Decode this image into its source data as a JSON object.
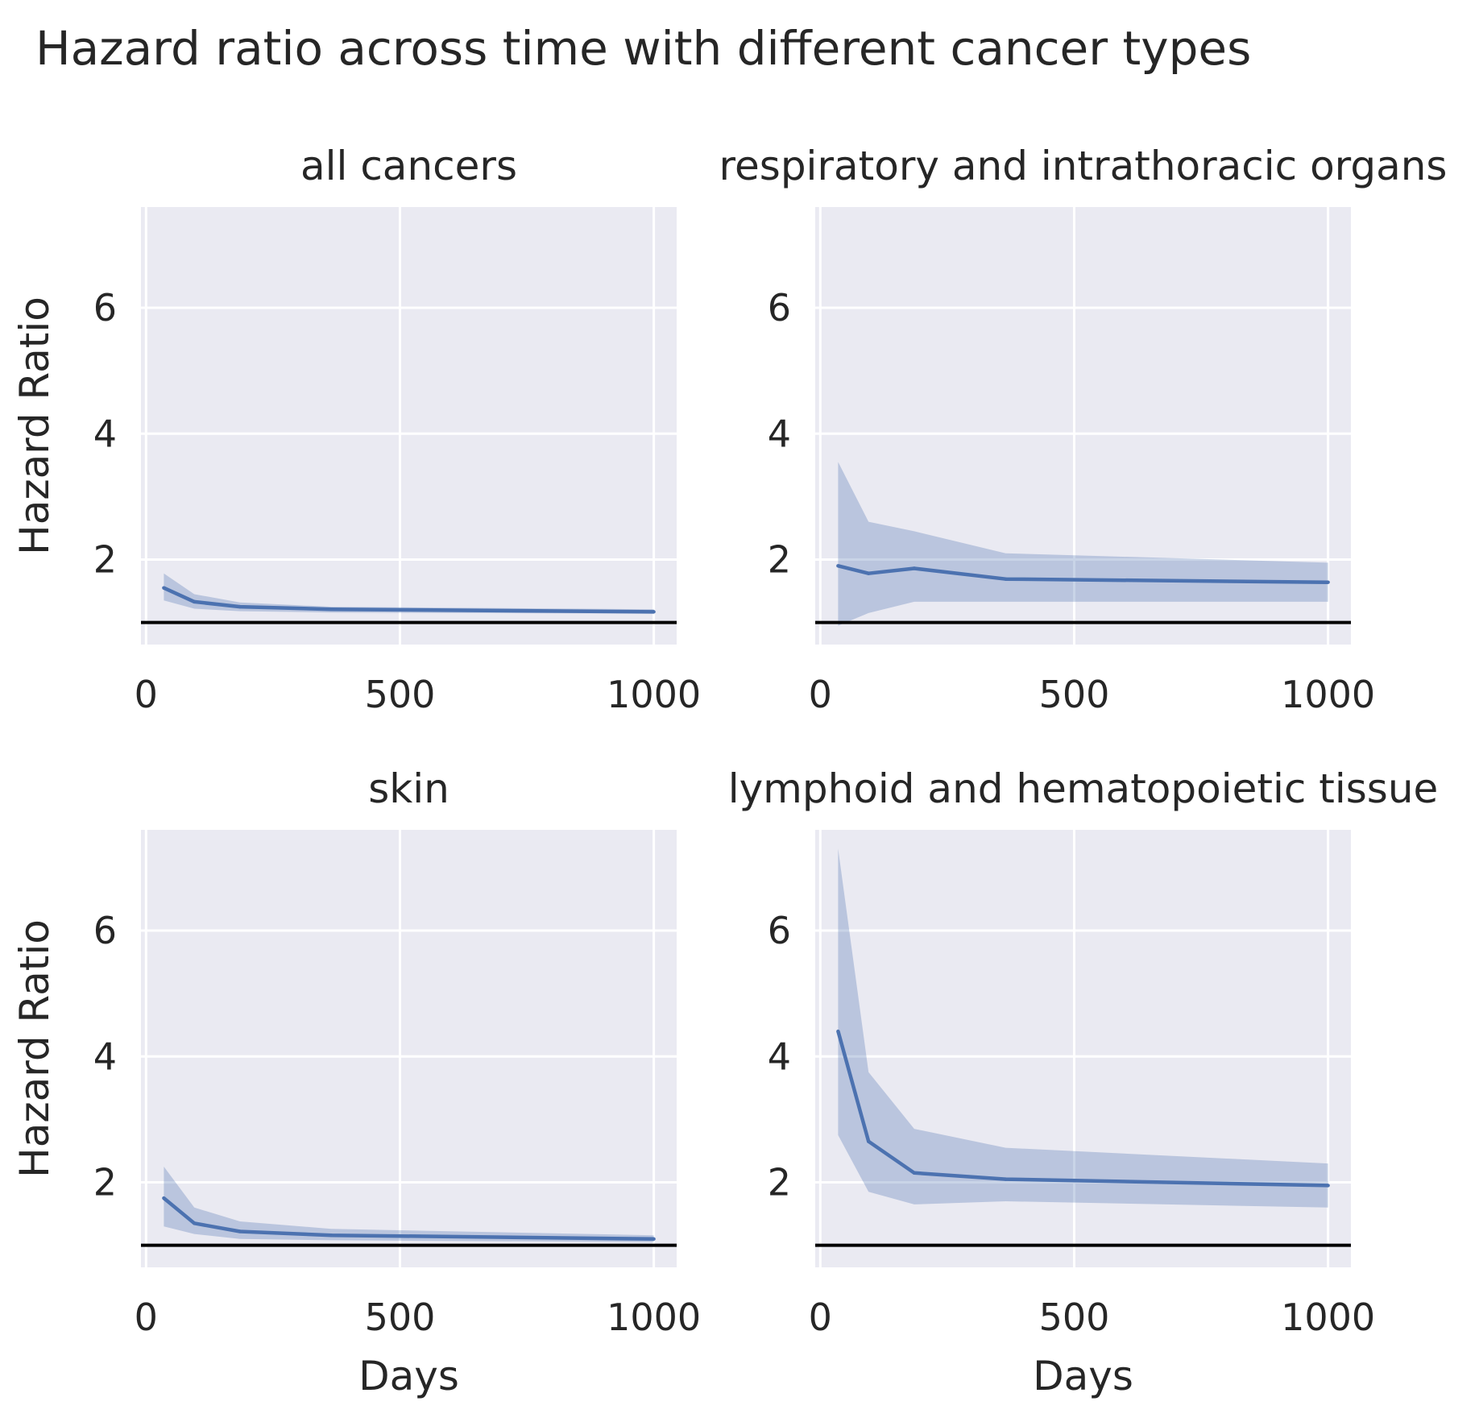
{
  "figure": {
    "title": "Hazard ratio across time with different cancer types"
  },
  "chart_data": [
    {
      "type": "line",
      "title": "all cancers",
      "xlabel": "",
      "ylabel": "Hazard Ratio",
      "xlim": [
        -10,
        1045
      ],
      "ylim": [
        0.65,
        7.6
      ],
      "xticks": [
        0,
        500,
        1000
      ],
      "yticks": [
        2,
        4,
        6
      ],
      "reference_line": 1,
      "x": [
        35,
        95,
        185,
        365,
        1000
      ],
      "values": [
        1.55,
        1.33,
        1.25,
        1.21,
        1.17
      ],
      "ci_low": [
        1.35,
        1.22,
        1.18,
        1.16,
        1.14
      ],
      "ci_high": [
        1.78,
        1.45,
        1.32,
        1.25,
        1.21
      ]
    },
    {
      "type": "line",
      "title": "respiratory and intrathoracic organs",
      "xlabel": "",
      "ylabel": "",
      "xlim": [
        -10,
        1045
      ],
      "ylim": [
        0.65,
        7.6
      ],
      "xticks": [
        0,
        500,
        1000
      ],
      "yticks": [
        2,
        4,
        6
      ],
      "reference_line": 1,
      "x": [
        35,
        95,
        185,
        365,
        1000
      ],
      "values": [
        1.9,
        1.78,
        1.86,
        1.69,
        1.64
      ],
      "ci_low": [
        0.95,
        1.15,
        1.33,
        1.33,
        1.33
      ],
      "ci_high": [
        3.55,
        2.6,
        2.45,
        2.1,
        1.95
      ]
    },
    {
      "type": "line",
      "title": "skin",
      "xlabel": "Days",
      "ylabel": "Hazard Ratio",
      "xlim": [
        -10,
        1045
      ],
      "ylim": [
        0.65,
        7.6
      ],
      "xticks": [
        0,
        500,
        1000
      ],
      "yticks": [
        2,
        4,
        6
      ],
      "reference_line": 1,
      "x": [
        35,
        95,
        185,
        365,
        1000
      ],
      "values": [
        1.75,
        1.35,
        1.22,
        1.16,
        1.1
      ],
      "ci_low": [
        1.3,
        1.18,
        1.1,
        1.08,
        1.05
      ],
      "ci_high": [
        2.25,
        1.6,
        1.38,
        1.26,
        1.16
      ]
    },
    {
      "type": "line",
      "title": "lymphoid and hematopoietic tissue",
      "xlabel": "Days",
      "ylabel": "",
      "xlim": [
        -10,
        1045
      ],
      "ylim": [
        0.65,
        7.6
      ],
      "xticks": [
        0,
        500,
        1000
      ],
      "yticks": [
        2,
        4,
        6
      ],
      "reference_line": 1,
      "x": [
        35,
        95,
        185,
        365,
        1000
      ],
      "values": [
        4.4,
        2.65,
        2.15,
        2.05,
        1.95
      ],
      "ci_low": [
        2.75,
        1.85,
        1.65,
        1.7,
        1.6
      ],
      "ci_high": [
        7.3,
        3.75,
        2.85,
        2.55,
        2.3
      ]
    }
  ]
}
